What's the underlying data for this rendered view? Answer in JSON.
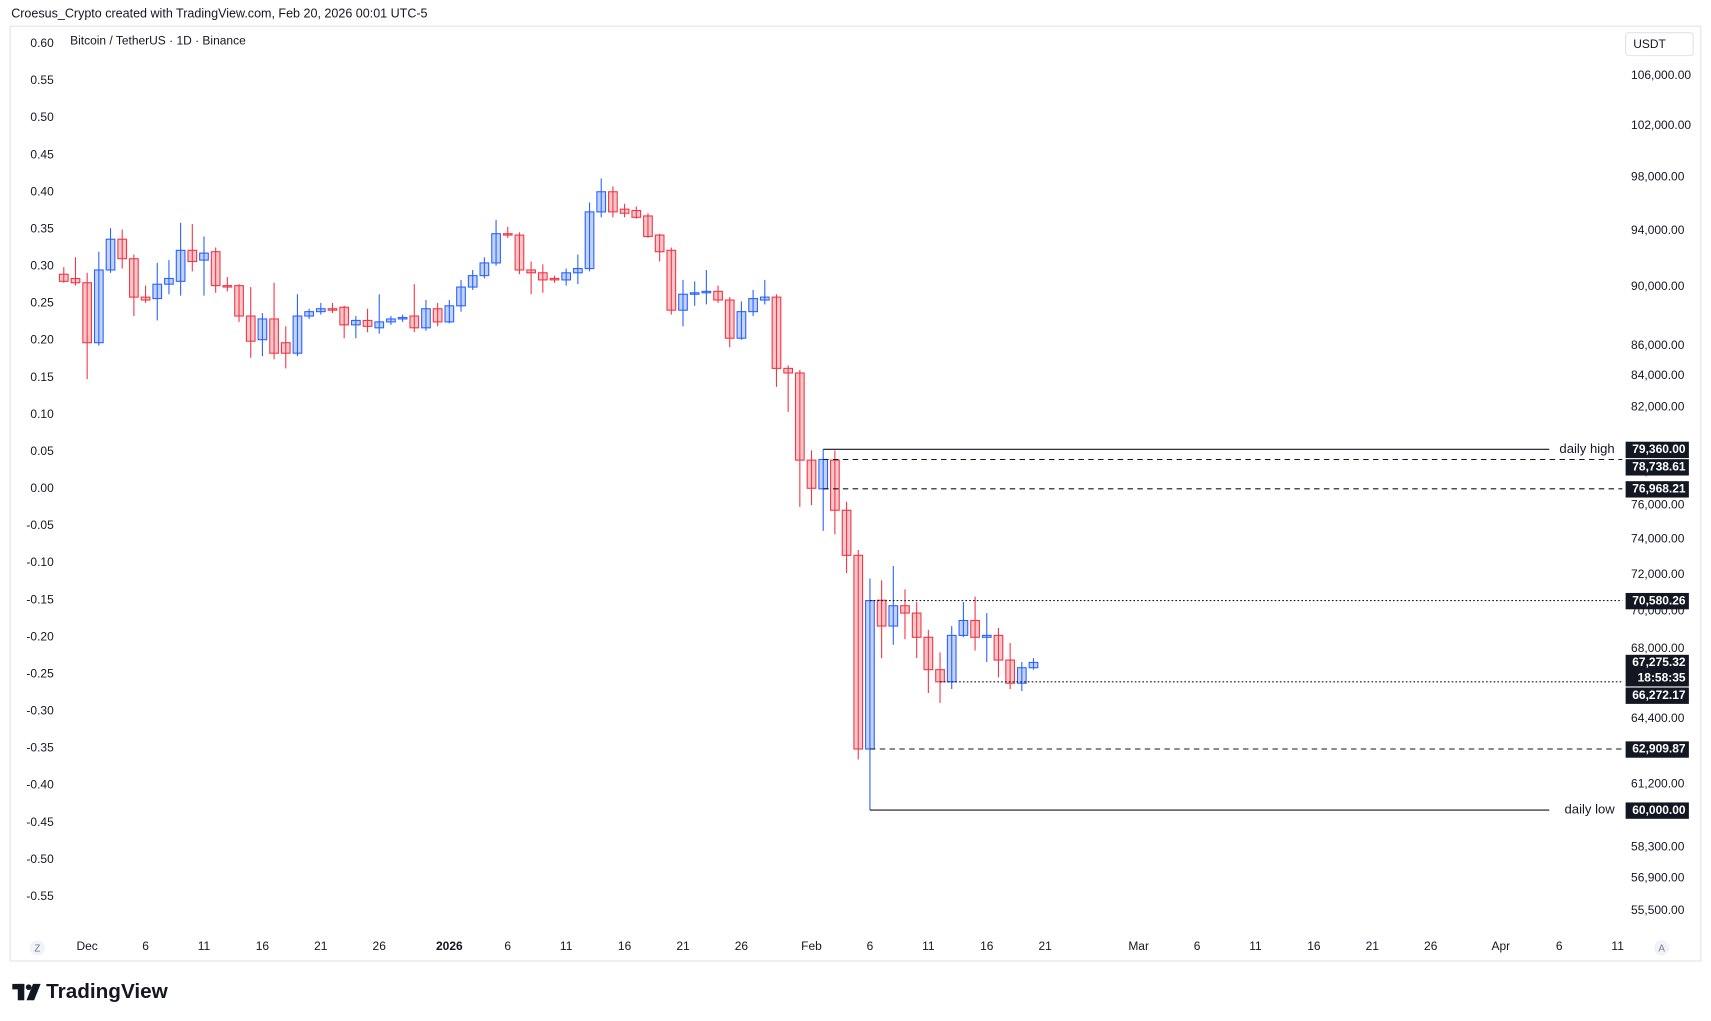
{
  "header": {
    "attribution": "Croesus_Crypto created with TradingView.com, Feb 20, 2026 00:01 UTC-5"
  },
  "footer": {
    "brand": "TradingView"
  },
  "chart_data": {
    "type": "candlestick",
    "symbol": "Bitcoin / TetherUS · 1D · Binance",
    "currency": "USDT",
    "scale_buttons": [
      "Z",
      "A"
    ],
    "log_scale": true,
    "up_color": "#2962ff",
    "down_color": "#f23645",
    "level_color": "#131722",
    "x": [
      -2,
      -1,
      0,
      1,
      2,
      3,
      4,
      5,
      6,
      7,
      8,
      9,
      10,
      11,
      12,
      13,
      14,
      15,
      16,
      17,
      18,
      19,
      20,
      21,
      22,
      23,
      24,
      25,
      26,
      27,
      28,
      29,
      30,
      31,
      32,
      33,
      34,
      35,
      36,
      37,
      38,
      39,
      40,
      41,
      42,
      43,
      44,
      45,
      46,
      47,
      48,
      49,
      50,
      51,
      52,
      53,
      54,
      55,
      56,
      57,
      58,
      59,
      60,
      61,
      62,
      63,
      64,
      65,
      66,
      67,
      68,
      69,
      70,
      71,
      72,
      73,
      74,
      75,
      76,
      77,
      78,
      79,
      80,
      81
    ],
    "open": [
      90900,
      90600,
      90300,
      86200,
      91200,
      93400,
      92000,
      89300,
      89200,
      90200,
      90400,
      92600,
      91900,
      92500,
      90100,
      90100,
      88000,
      86400,
      87800,
      86200,
      85500,
      88000,
      88300,
      88500,
      88600,
      87400,
      87700,
      87200,
      87600,
      87800,
      88000,
      87200,
      88500,
      87600,
      88700,
      90000,
      90800,
      91700,
      93800,
      93700,
      91200,
      91000,
      90600,
      90500,
      91000,
      91300,
      95400,
      96900,
      95600,
      95500,
      95100,
      93700,
      92600,
      88400,
      89500,
      89600,
      89700,
      89100,
      86500,
      88300,
      89100,
      89300,
      84500,
      84200,
      78700,
      76968.21,
      78700,
      75700,
      73100,
      62909.87,
      70600,
      69200,
      70300,
      69900,
      68600,
      66900,
      66272.17,
      68700,
      69500,
      68600,
      68700,
      67400,
      66200,
      67000
    ],
    "high": [
      91400,
      92100,
      91000,
      92500,
      94200,
      94100,
      92300,
      90100,
      91700,
      91900,
      94600,
      94500,
      93600,
      92800,
      90700,
      90200,
      90000,
      88200,
      90300,
      87300,
      89500,
      88500,
      88900,
      88900,
      88700,
      88000,
      88500,
      89500,
      88000,
      88100,
      90200,
      89100,
      88900,
      89100,
      90500,
      91200,
      92100,
      94800,
      94300,
      93900,
      91800,
      91600,
      90800,
      91300,
      92300,
      96100,
      97900,
      97300,
      96000,
      95800,
      95300,
      93800,
      92800,
      90500,
      90400,
      91200,
      90100,
      89300,
      89000,
      89800,
      90500,
      89500,
      84700,
      84400,
      79300,
      79360,
      79300,
      76200,
      73400,
      71800,
      71700,
      72500,
      71200,
      70500,
      69000,
      67800,
      69200,
      70500,
      70800,
      69900,
      69100,
      68300,
      67300,
      67500
    ],
    "low": [
      90300,
      90100,
      83800,
      86000,
      91000,
      91300,
      88000,
      88900,
      87700,
      89500,
      89400,
      91100,
      89400,
      89600,
      89700,
      87600,
      85200,
      85300,
      85100,
      84500,
      85300,
      87800,
      88100,
      88200,
      86500,
      86500,
      86900,
      86800,
      87400,
      87600,
      86900,
      87000,
      87300,
      87500,
      88300,
      89800,
      90600,
      91500,
      93500,
      90900,
      89500,
      89600,
      90300,
      90100,
      90200,
      91100,
      95000,
      95000,
      95000,
      94900,
      93500,
      91800,
      88100,
      87300,
      88700,
      88800,
      88900,
      85900,
      86400,
      88000,
      88800,
      83300,
      81700,
      75900,
      76000,
      74500,
      74300,
      72100,
      62400,
      60000,
      67500,
      68200,
      68500,
      67500,
      65700,
      65200,
      65900,
      68600,
      67900,
      67300,
      66500,
      65900,
      65800,
      66900
    ],
    "close": [
      90400,
      90300,
      86200,
      91200,
      93400,
      92000,
      89300,
      89100,
      90200,
      90600,
      92600,
      91800,
      92400,
      90100,
      90000,
      88000,
      86300,
      87800,
      85500,
      85500,
      88000,
      88300,
      88500,
      88400,
      87400,
      87700,
      87300,
      87600,
      87800,
      87900,
      87200,
      88500,
      87600,
      88700,
      90000,
      90800,
      91700,
      93800,
      93700,
      91200,
      91000,
      90500,
      90500,
      91000,
      91300,
      95400,
      96900,
      95400,
      95300,
      95000,
      93600,
      92500,
      88400,
      89500,
      89600,
      89700,
      89100,
      86500,
      88300,
      89200,
      89300,
      84500,
      84200,
      78700,
      77000,
      78738.61,
      75700,
      73100,
      62909.87,
      70580.26,
      69200,
      70300,
      69900,
      68600,
      66900,
      66272.17,
      68700,
      69500,
      68600,
      68700,
      67400,
      66200,
      67000,
      67275.32
    ],
    "xlim": [
      -6.5,
      131.4
    ],
    "xticks": [
      {
        "value": 0,
        "label": "Dec"
      },
      {
        "value": 5,
        "label": "6"
      },
      {
        "value": 10,
        "label": "11"
      },
      {
        "value": 15,
        "label": "16"
      },
      {
        "value": 20,
        "label": "21"
      },
      {
        "value": 25,
        "label": "26"
      },
      {
        "value": 31,
        "label": "2026"
      },
      {
        "value": 36,
        "label": "6"
      },
      {
        "value": 41,
        "label": "11"
      },
      {
        "value": 46,
        "label": "16"
      },
      {
        "value": 51,
        "label": "21"
      },
      {
        "value": 56,
        "label": "26"
      },
      {
        "value": 62,
        "label": "Feb"
      },
      {
        "value": 67,
        "label": "6"
      },
      {
        "value": 72,
        "label": "11"
      },
      {
        "value": 77,
        "label": "16"
      },
      {
        "value": 82,
        "label": "21"
      },
      {
        "value": 90,
        "label": "Mar"
      },
      {
        "value": 95,
        "label": "6"
      },
      {
        "value": 100,
        "label": "11"
      },
      {
        "value": 105,
        "label": "16"
      },
      {
        "value": 110,
        "label": "21"
      },
      {
        "value": 115,
        "label": "26"
      },
      {
        "value": 121,
        "label": "Apr"
      },
      {
        "value": 126,
        "label": "6"
      },
      {
        "value": 131,
        "label": "11"
      }
    ],
    "ylim": [
      54700,
      109800
    ],
    "yticks": [
      {
        "value": 106000,
        "label": "106,000.00"
      },
      {
        "value": 102000,
        "label": "102,000.00"
      },
      {
        "value": 98000,
        "label": "98,000.00"
      },
      {
        "value": 94000,
        "label": "94,000.00"
      },
      {
        "value": 90000,
        "label": "90,000.00"
      },
      {
        "value": 86000,
        "label": "86,000.00"
      },
      {
        "value": 84000,
        "label": "84,000.00"
      },
      {
        "value": 82000,
        "label": "82,000.00"
      },
      {
        "value": 78000,
        "label": "78,000.00"
      },
      {
        "value": 76000,
        "label": "76,000.00"
      },
      {
        "value": 74000,
        "label": "74,000.00"
      },
      {
        "value": 72000,
        "label": "72,000.00"
      },
      {
        "value": 70000,
        "label": "70,000.00"
      },
      {
        "value": 68000,
        "label": "68,000.00"
      },
      {
        "value": 64400,
        "label": "64,400.00"
      },
      {
        "value": 61200,
        "label": "61,200.00"
      },
      {
        "value": 58300,
        "label": "58,300.00"
      },
      {
        "value": 56900,
        "label": "56,900.00"
      },
      {
        "value": 55500,
        "label": "55,500.00"
      }
    ],
    "y2lim": [
      -0.594,
      0.618
    ],
    "y2ticks": [
      {
        "value": 0.6,
        "label": "0.60"
      },
      0.55,
      {
        "value": 0.5,
        "label": "0.50"
      },
      0.45,
      {
        "value": 0.4,
        "label": "0.40"
      },
      0.35,
      {
        "value": 0.3,
        "label": "0.30"
      },
      0.25,
      {
        "value": 0.2,
        "label": "0.20"
      },
      0.15,
      {
        "value": 0.1,
        "label": "0.10"
      },
      0.05,
      {
        "value": 0,
        "label": "0.00"
      },
      -0.05,
      {
        "value": -0.1,
        "label": "-0.10"
      },
      -0.15,
      {
        "value": -0.2,
        "label": "-0.20"
      },
      -0.25,
      {
        "value": -0.3,
        "label": "-0.30"
      },
      -0.35,
      {
        "value": -0.4,
        "label": "-0.40"
      },
      -0.45,
      {
        "value": -0.5,
        "label": "-0.50"
      },
      -0.55
    ],
    "levels": [
      {
        "value": 79360,
        "label": "79,360.00",
        "annotation": "daily high",
        "style": "solid",
        "start": 63
      },
      {
        "value": 78738.61,
        "label": "78,738.61",
        "style": "dashed",
        "start": 63
      },
      {
        "value": 76968.21,
        "label": "76,968.21",
        "style": "dashed",
        "start": 63
      },
      {
        "value": 70580.26,
        "label": "70,580.26",
        "style": "dotted",
        "start": 67
      },
      {
        "value": 66272.17,
        "label": "66,272.17",
        "style": "dotted",
        "start": 73
      },
      {
        "value": 62909.87,
        "label": "62,909.87",
        "style": "dashed",
        "start": 67
      },
      {
        "value": 60000,
        "label": "60,000.00",
        "annotation": "daily low",
        "style": "solid",
        "start": 67
      }
    ],
    "last_price": {
      "value": 67275.32,
      "label": "67,275.32",
      "countdown": "18:58:35"
    }
  }
}
